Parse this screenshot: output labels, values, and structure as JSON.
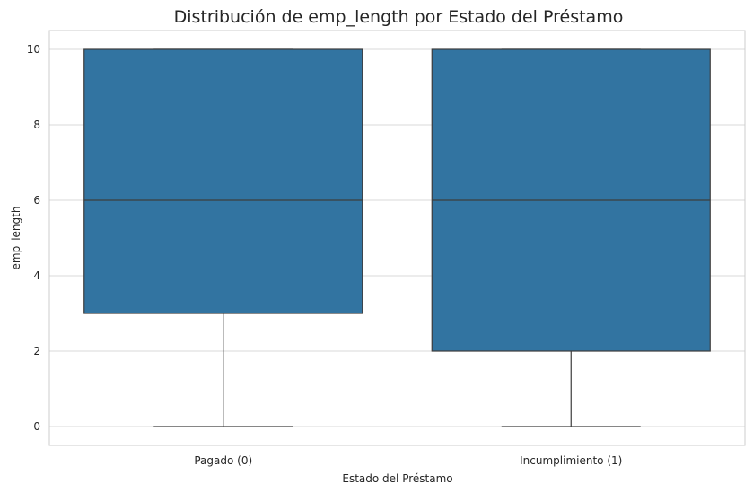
{
  "chart_data": {
    "type": "box",
    "title": "Distribución de emp_length por Estado del Préstamo",
    "xlabel": "Estado del Préstamo",
    "ylabel": "emp_length",
    "categories": [
      "Pagado (0)",
      "Incumplimiento (1)"
    ],
    "boxes": [
      {
        "category": "Pagado (0)",
        "min": 0,
        "q1": 3,
        "median": 6,
        "q3": 10,
        "max": 10
      },
      {
        "category": "Incumplimiento (1)",
        "min": 0,
        "q1": 2,
        "median": 6,
        "q3": 10,
        "max": 10
      }
    ],
    "yticks": [
      0,
      2,
      4,
      6,
      8,
      10
    ],
    "ylim": [
      -0.5,
      10.5
    ],
    "grid": true,
    "color": "#3274a1"
  }
}
